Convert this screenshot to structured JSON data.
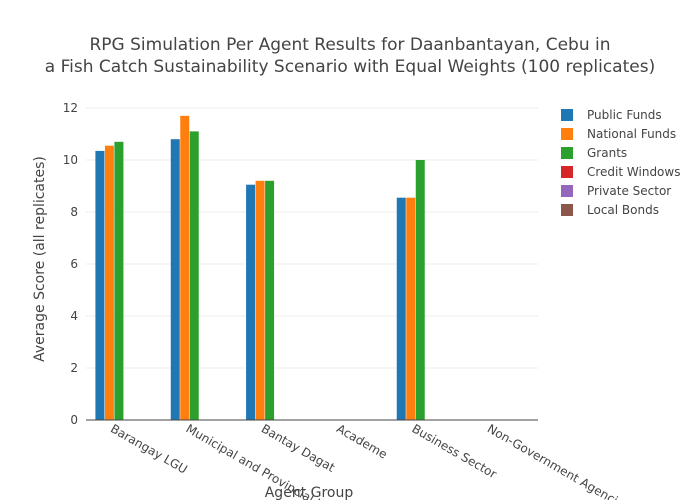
{
  "chart_data": {
    "type": "bar",
    "title_lines": [
      "RPG Simulation Per Agent Results for Daanbantayan, Cebu in",
      "a Fish Catch Sustainability Scenario with Equal Weights (100 replicates)"
    ],
    "xlabel": "Agent Group",
    "ylabel": "Average Score (all replicates)",
    "ylim": [
      0,
      12.5
    ],
    "yticks": [
      0,
      2,
      4,
      6,
      8,
      10,
      12
    ],
    "grid": true,
    "legend_position": "right",
    "categories": [
      "Barangay LGU",
      "Municipal and Provincial LGU",
      "Bantay Dagat",
      "Academe",
      "Business Sector",
      "Non-Government Agencies"
    ],
    "series": [
      {
        "name": "Public Funds",
        "color": "#1f77b4",
        "values": [
          10.35,
          10.8,
          9.05,
          null,
          8.55,
          null
        ]
      },
      {
        "name": "National Funds",
        "color": "#ff7f0e",
        "values": [
          10.55,
          11.7,
          9.2,
          null,
          8.55,
          null
        ]
      },
      {
        "name": "Grants",
        "color": "#2ca02c",
        "values": [
          10.7,
          11.1,
          9.2,
          null,
          10.0,
          null
        ]
      },
      {
        "name": "Credit Windows",
        "color": "#d62728",
        "values": [
          null,
          null,
          null,
          null,
          null,
          null
        ]
      },
      {
        "name": "Private Sector",
        "color": "#9467bd",
        "values": [
          null,
          null,
          null,
          null,
          null,
          null
        ]
      },
      {
        "name": "Local Bonds",
        "color": "#8c564b",
        "values": [
          null,
          null,
          null,
          null,
          null,
          null
        ]
      }
    ]
  }
}
